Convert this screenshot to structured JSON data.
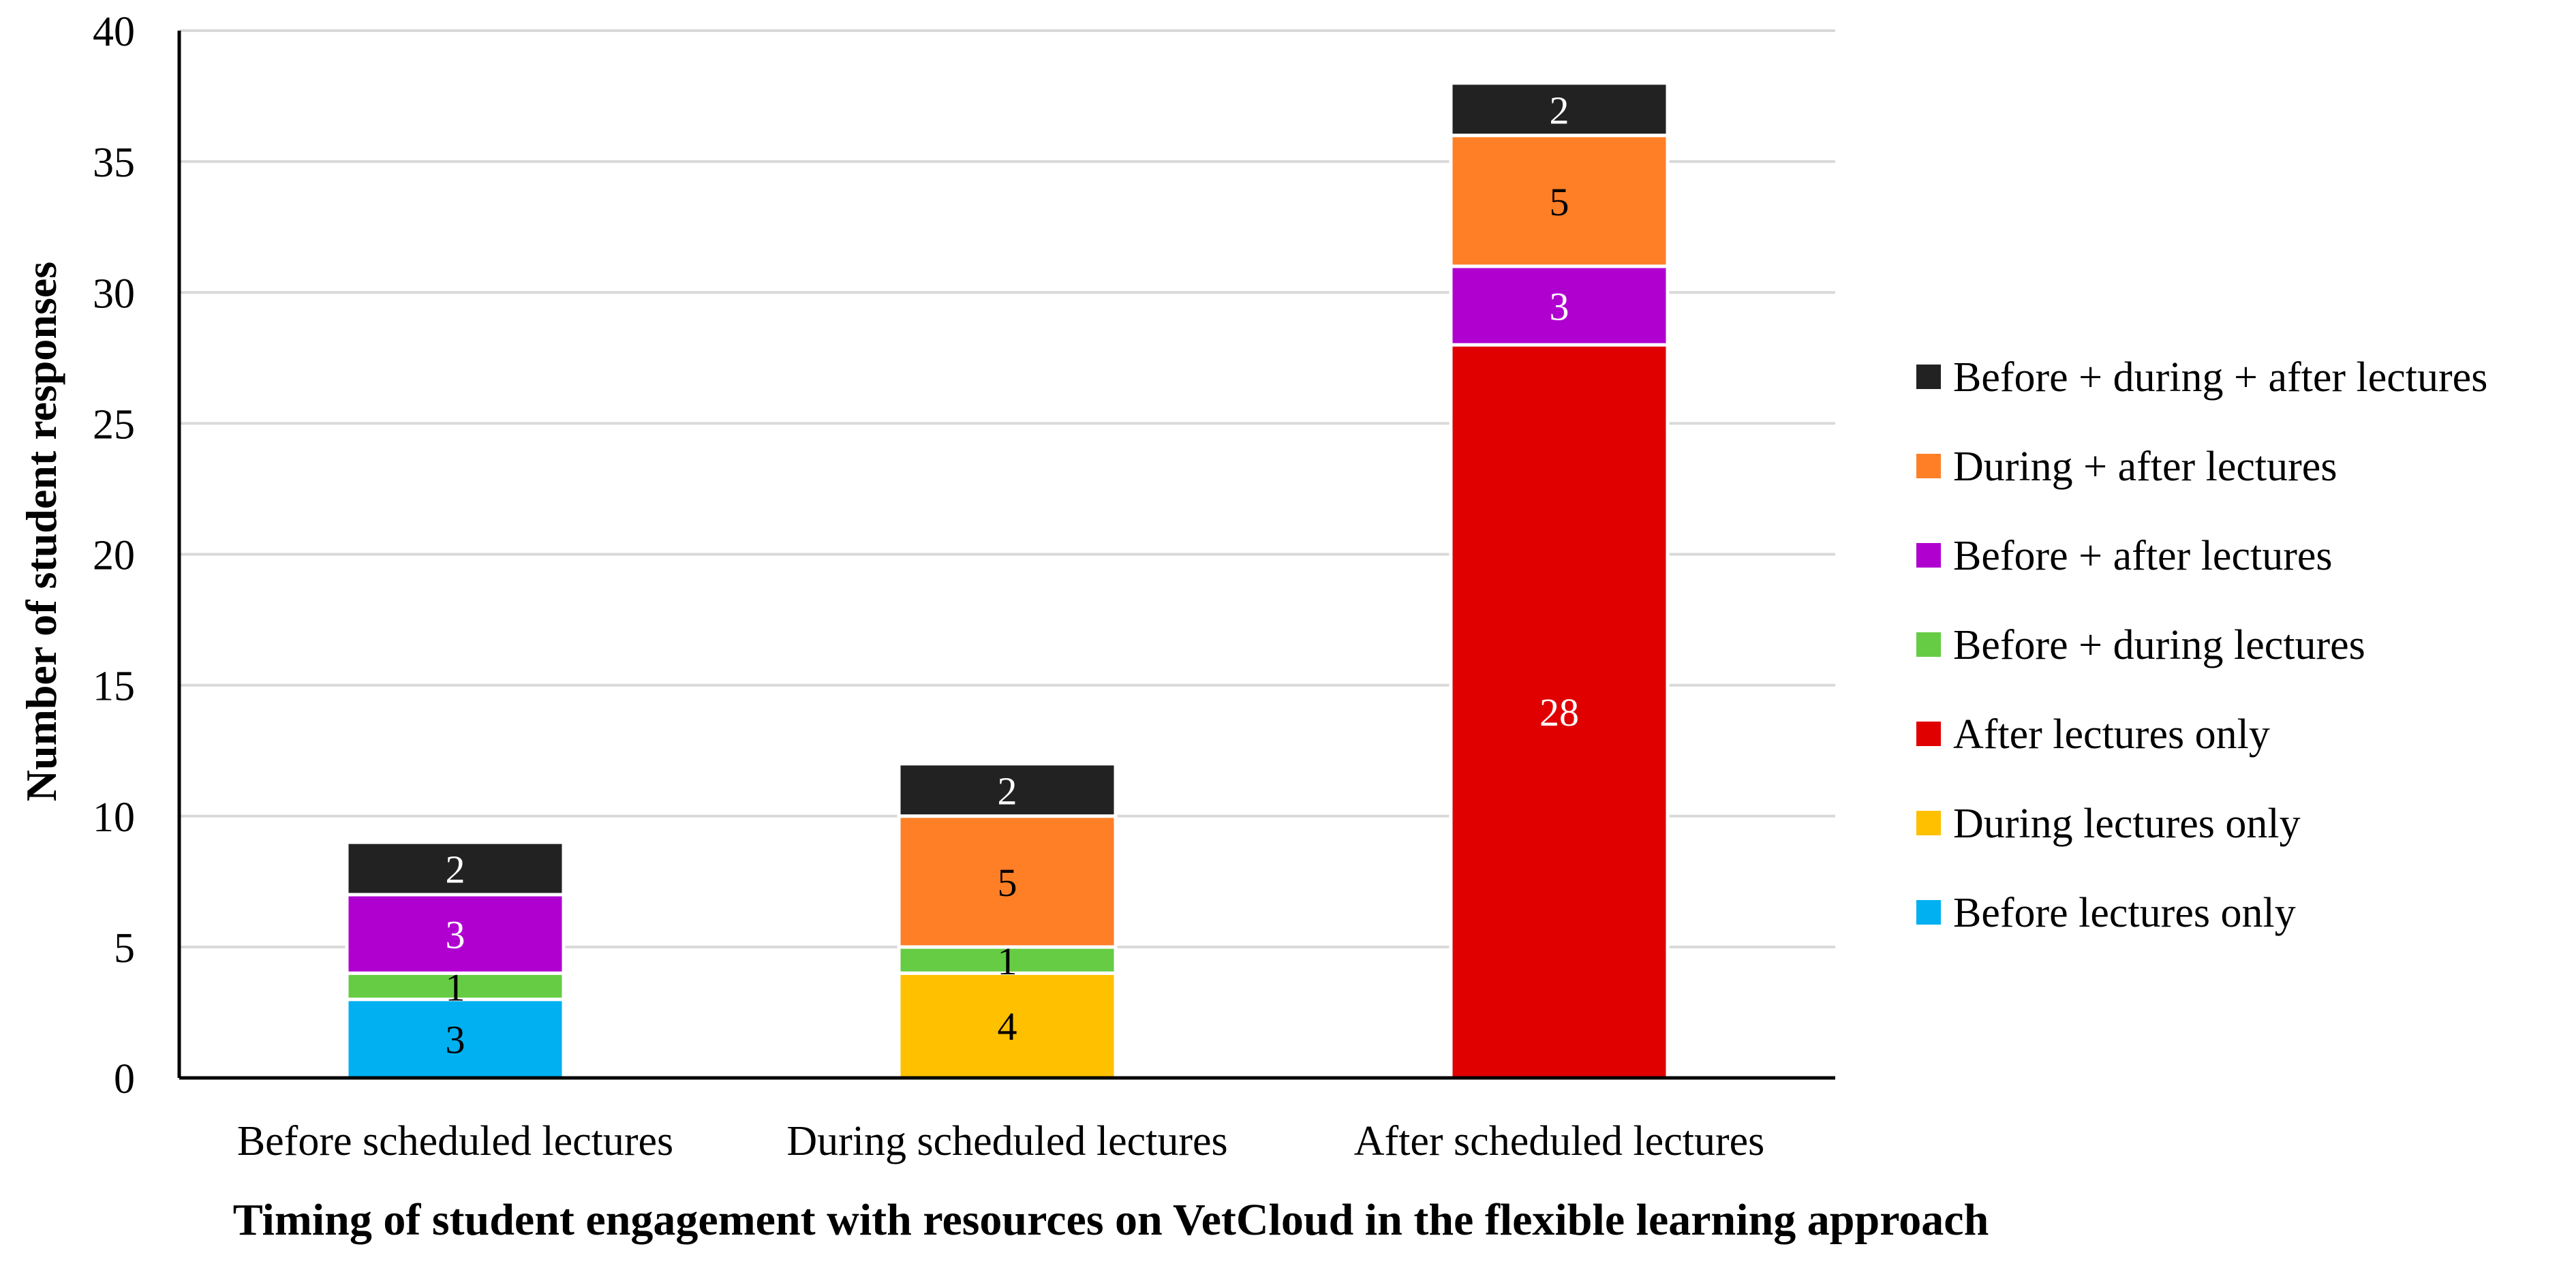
{
  "chart_data": {
    "type": "bar",
    "stacked": true,
    "categories": [
      "Before scheduled lectures",
      "During scheduled lectures",
      "After scheduled lectures"
    ],
    "series": [
      {
        "name": "Before lectures only",
        "color": "#00B0F0",
        "label_color": "#000000",
        "values": [
          3,
          0,
          0
        ]
      },
      {
        "name": "During lectures only",
        "color": "#FFC000",
        "label_color": "#000000",
        "values": [
          0,
          4,
          0
        ]
      },
      {
        "name": "After lectures only",
        "color": "#E00000",
        "label_color": "#FFFFFF",
        "values": [
          0,
          0,
          28
        ]
      },
      {
        "name": "Before + during lectures",
        "color": "#66CC44",
        "label_color": "#000000",
        "values": [
          1,
          1,
          0
        ]
      },
      {
        "name": "Before + after lectures",
        "color": "#B000D0",
        "label_color": "#FFFFFF",
        "values": [
          3,
          0,
          3
        ]
      },
      {
        "name": "During + after lectures",
        "color": "#FF7F27",
        "label_color": "#000000",
        "values": [
          0,
          5,
          5
        ]
      },
      {
        "name": "Before + during + after lectures",
        "color": "#222222",
        "label_color": "#FFFFFF",
        "values": [
          2,
          2,
          2
        ]
      }
    ],
    "legend_order": [
      6,
      5,
      4,
      3,
      2,
      1,
      0
    ],
    "xlabel": "Timing of student engagement with resources on VetCloud in the flexible learning approach",
    "ylabel": "Number of student responses",
    "ylim": [
      0,
      40
    ],
    "yticks": [
      0,
      5,
      10,
      15,
      20,
      25,
      30,
      35,
      40
    ],
    "grid": true,
    "legend_position": "right"
  }
}
